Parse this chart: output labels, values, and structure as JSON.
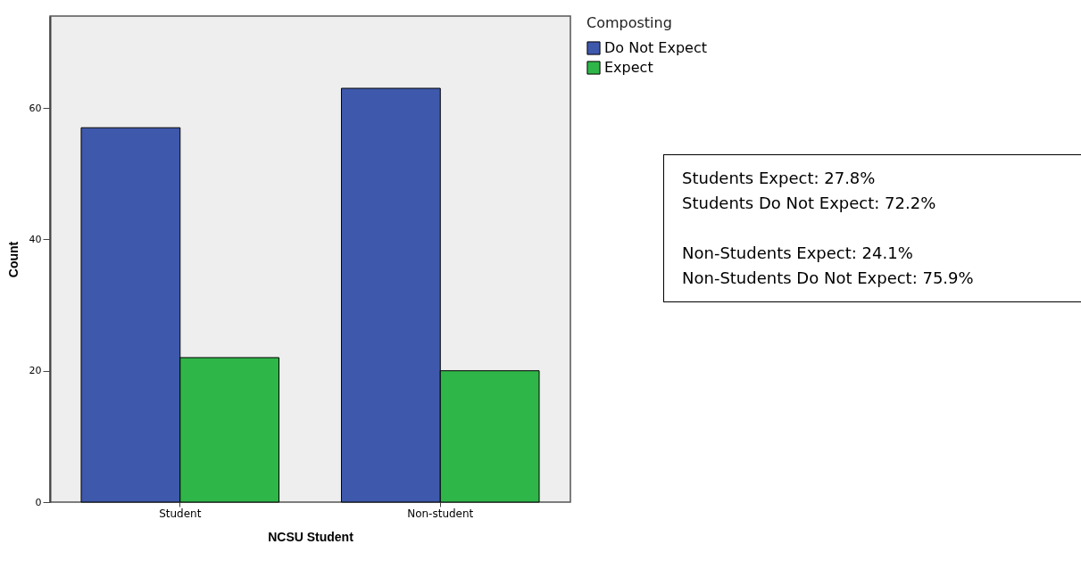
{
  "chart_data": {
    "type": "bar",
    "xlabel": "NCSU Student",
    "ylabel": "Count",
    "legend_title": "Composting",
    "categories": [
      "Student",
      "Non-student"
    ],
    "series": [
      {
        "name": "Do Not Expect",
        "color": "#3e58ac",
        "values": [
          57,
          63
        ]
      },
      {
        "name": "Expect",
        "color": "#2fb648",
        "values": [
          22,
          20
        ]
      }
    ],
    "ylim": [
      0,
      74
    ],
    "yticks": [
      0,
      20,
      40,
      60
    ],
    "grid": false,
    "legend": "top right",
    "annotations": [
      "Students Expect: 27.8%",
      "Students Do Not Expect: 72.2%",
      "Non-Students Expect: 24.1%",
      "Non-Students Do Not Expect: 75.9%"
    ]
  }
}
